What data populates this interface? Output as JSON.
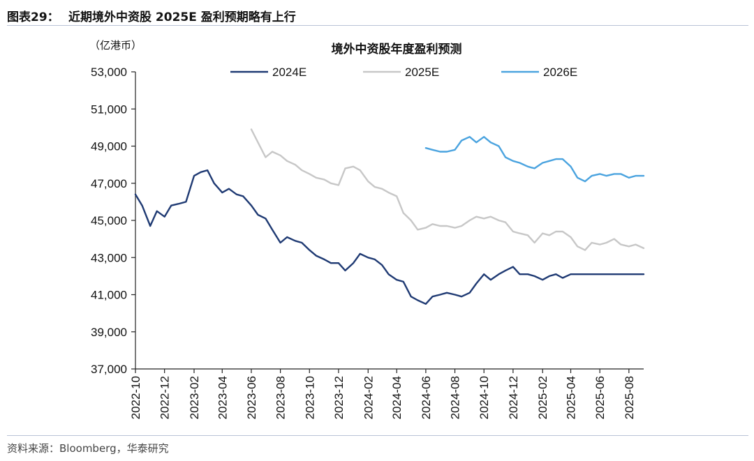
{
  "figure": {
    "number": "图表29：",
    "title": "近期境外中资股 2025E 盈利预期略有上行",
    "unit_label": "（亿港币）",
    "source": "资料来源：Bloomberg，华泰研究"
  },
  "chart_data": {
    "type": "line",
    "title": "境外中资股年度盈利预测",
    "ylabel": "（亿港币）",
    "ylim": [
      37000,
      53000
    ],
    "yticks": [
      37000,
      39000,
      41000,
      43000,
      45000,
      47000,
      49000,
      51000,
      53000
    ],
    "yticklabels": [
      "37,000",
      "39,000",
      "41,000",
      "43,000",
      "45,000",
      "47,000",
      "49,000",
      "51,000",
      "53,000"
    ],
    "xlim": [
      "2022-10",
      "2025-09"
    ],
    "xticks": [
      "2022-10",
      "2022-12",
      "2023-02",
      "2023-04",
      "2023-06",
      "2023-08",
      "2023-10",
      "2023-12",
      "2024-02",
      "2024-04",
      "2024-06",
      "2024-08",
      "2024-10",
      "2024-12",
      "2025-02",
      "2025-04",
      "2025-06",
      "2025-08"
    ],
    "grid": false,
    "legend": "top",
    "series": [
      {
        "name": "2024E",
        "color": "#1f3a73",
        "x": [
          "2022-10-01",
          "2022-10-15",
          "2022-11-01",
          "2022-11-15",
          "2022-12-01",
          "2022-12-15",
          "2023-01-01",
          "2023-01-15",
          "2023-02-01",
          "2023-02-15",
          "2023-03-01",
          "2023-03-15",
          "2023-04-01",
          "2023-04-15",
          "2023-05-01",
          "2023-05-15",
          "2023-06-01",
          "2023-06-15",
          "2023-07-01",
          "2023-07-15",
          "2023-08-01",
          "2023-08-15",
          "2023-09-01",
          "2023-09-15",
          "2023-10-01",
          "2023-10-15",
          "2023-11-01",
          "2023-11-15",
          "2023-12-01",
          "2023-12-15",
          "2024-01-01",
          "2024-01-15",
          "2024-02-01",
          "2024-02-15",
          "2024-03-01",
          "2024-03-15",
          "2024-04-01",
          "2024-04-15",
          "2024-05-01",
          "2024-05-15",
          "2024-06-01",
          "2024-06-15",
          "2024-07-01",
          "2024-07-15",
          "2024-08-01",
          "2024-08-15",
          "2024-09-01",
          "2024-09-15",
          "2024-10-01",
          "2024-10-15",
          "2024-11-01",
          "2024-11-15",
          "2024-12-01",
          "2024-12-15",
          "2025-01-01",
          "2025-01-15",
          "2025-02-01",
          "2025-02-15",
          "2025-03-01",
          "2025-03-15",
          "2025-04-01",
          "2025-05-01",
          "2025-06-01",
          "2025-07-01",
          "2025-08-01",
          "2025-09-01"
        ],
        "y": [
          46400,
          45800,
          44700,
          45500,
          45200,
          45800,
          45900,
          46000,
          47400,
          47600,
          47700,
          47000,
          46500,
          46700,
          46400,
          46300,
          45800,
          45300,
          45100,
          44500,
          43800,
          44100,
          43900,
          43800,
          43400,
          43100,
          42900,
          42700,
          42700,
          42300,
          42700,
          43200,
          43000,
          42900,
          42600,
          42100,
          41800,
          41700,
          40900,
          40700,
          40500,
          40900,
          41000,
          41100,
          41000,
          40900,
          41100,
          41600,
          42100,
          41800,
          42100,
          42300,
          42500,
          42100,
          42100,
          42000,
          41800,
          42000,
          42100,
          41900,
          42100,
          42100,
          42100,
          42100,
          42100,
          42100
        ]
      },
      {
        "name": "2025E",
        "color": "#c7c7c7",
        "x": [
          "2023-06-01",
          "2023-06-15",
          "2023-07-01",
          "2023-07-15",
          "2023-08-01",
          "2023-08-15",
          "2023-09-01",
          "2023-09-15",
          "2023-10-01",
          "2023-10-15",
          "2023-11-01",
          "2023-11-15",
          "2023-12-01",
          "2023-12-15",
          "2024-01-01",
          "2024-01-15",
          "2024-02-01",
          "2024-02-15",
          "2024-03-01",
          "2024-03-15",
          "2024-04-01",
          "2024-04-15",
          "2024-05-01",
          "2024-05-15",
          "2024-06-01",
          "2024-06-15",
          "2024-07-01",
          "2024-07-15",
          "2024-08-01",
          "2024-08-15",
          "2024-09-01",
          "2024-09-15",
          "2024-10-01",
          "2024-10-15",
          "2024-11-01",
          "2024-11-15",
          "2024-12-01",
          "2024-12-15",
          "2025-01-01",
          "2025-01-15",
          "2025-02-01",
          "2025-02-15",
          "2025-03-01",
          "2025-03-15",
          "2025-04-01",
          "2025-04-15",
          "2025-05-01",
          "2025-05-15",
          "2025-06-01",
          "2025-06-15",
          "2025-07-01",
          "2025-07-15",
          "2025-08-01",
          "2025-08-15",
          "2025-09-01"
        ],
        "y": [
          49900,
          49200,
          48400,
          48700,
          48500,
          48200,
          48000,
          47700,
          47500,
          47300,
          47200,
          47000,
          46900,
          47800,
          47900,
          47700,
          47100,
          46800,
          46700,
          46500,
          46300,
          45400,
          45000,
          44500,
          44600,
          44800,
          44700,
          44700,
          44600,
          44700,
          45000,
          45200,
          45100,
          45200,
          45000,
          44900,
          44400,
          44300,
          44200,
          43800,
          44300,
          44200,
          44400,
          44400,
          44100,
          43600,
          43400,
          43800,
          43700,
          43800,
          44000,
          43700,
          43600,
          43700,
          43500
        ]
      },
      {
        "name": "2026E",
        "color": "#4aa3df",
        "x": [
          "2024-06-01",
          "2024-06-15",
          "2024-07-01",
          "2024-07-15",
          "2024-08-01",
          "2024-08-15",
          "2024-09-01",
          "2024-09-15",
          "2024-10-01",
          "2024-10-15",
          "2024-11-01",
          "2024-11-15",
          "2024-12-01",
          "2024-12-15",
          "2025-01-01",
          "2025-01-15",
          "2025-02-01",
          "2025-02-15",
          "2025-03-01",
          "2025-03-15",
          "2025-04-01",
          "2025-04-15",
          "2025-05-01",
          "2025-05-15",
          "2025-06-01",
          "2025-06-15",
          "2025-07-01",
          "2025-07-15",
          "2025-08-01",
          "2025-08-15",
          "2025-09-01"
        ],
        "y": [
          48900,
          48800,
          48700,
          48700,
          48800,
          49300,
          49500,
          49200,
          49500,
          49200,
          49000,
          48400,
          48200,
          48100,
          47900,
          47800,
          48100,
          48200,
          48300,
          48300,
          47900,
          47300,
          47100,
          47400,
          47500,
          47400,
          47500,
          47500,
          47300,
          47400,
          47400
        ]
      }
    ]
  }
}
